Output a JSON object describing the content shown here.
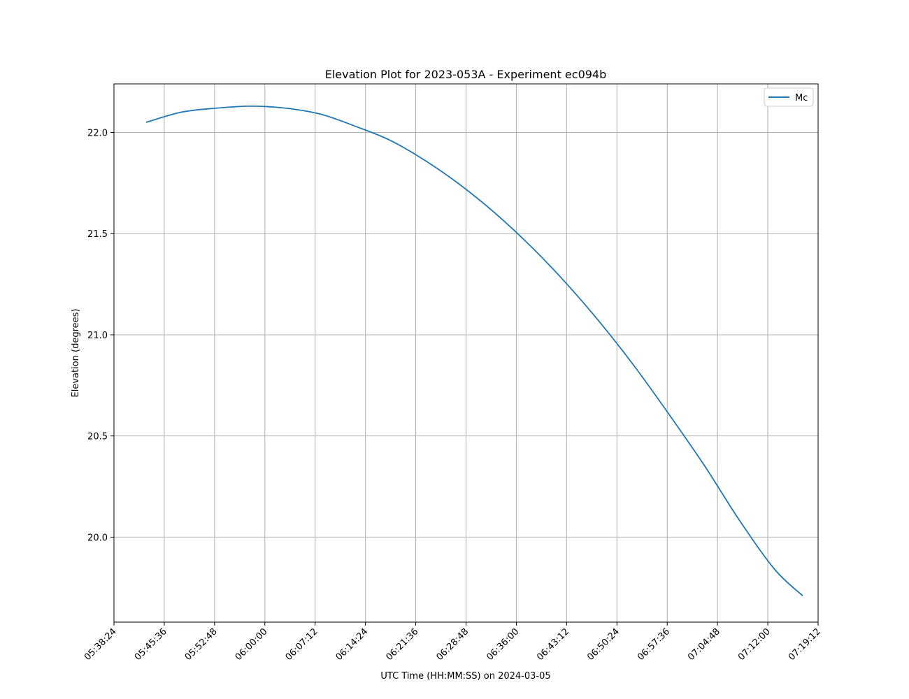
{
  "chart_data": {
    "type": "line",
    "title": "Elevation Plot for 2023-053A - Experiment ec094b",
    "xlabel": "UTC Time (HH:MM:SS) on 2024-03-05",
    "ylabel": "Elevation (degrees)",
    "xlim": [
      "05:38:24",
      "07:19:12"
    ],
    "ylim": [
      19.58,
      22.24
    ],
    "x_ticks": [
      "05:38:24",
      "05:45:36",
      "05:52:48",
      "06:00:00",
      "06:07:12",
      "06:14:24",
      "06:21:36",
      "06:28:48",
      "06:36:00",
      "06:43:12",
      "06:50:24",
      "06:57:36",
      "07:04:48",
      "07:12:00",
      "07:19:12"
    ],
    "y_ticks": [
      "20.0",
      "20.5",
      "21.0",
      "21.5",
      "22.0"
    ],
    "grid": true,
    "legend_position": "top-right",
    "line_color": "#1f77b4",
    "series": [
      {
        "name": "Mc",
        "x": [
          "05:43:00",
          "05:48:00",
          "05:53:00",
          "05:58:00",
          "06:03:00",
          "06:08:00",
          "06:13:00",
          "06:18:00",
          "06:23:00",
          "06:28:00",
          "06:33:00",
          "06:38:00",
          "06:43:00",
          "06:48:00",
          "06:53:00",
          "06:58:00",
          "07:03:00",
          "07:08:00",
          "07:13:00",
          "07:17:00"
        ],
        "values": [
          22.05,
          22.1,
          22.12,
          22.13,
          22.12,
          22.09,
          22.03,
          21.96,
          21.86,
          21.74,
          21.6,
          21.44,
          21.26,
          21.06,
          20.84,
          20.6,
          20.35,
          20.08,
          19.84,
          19.71
        ]
      }
    ]
  }
}
